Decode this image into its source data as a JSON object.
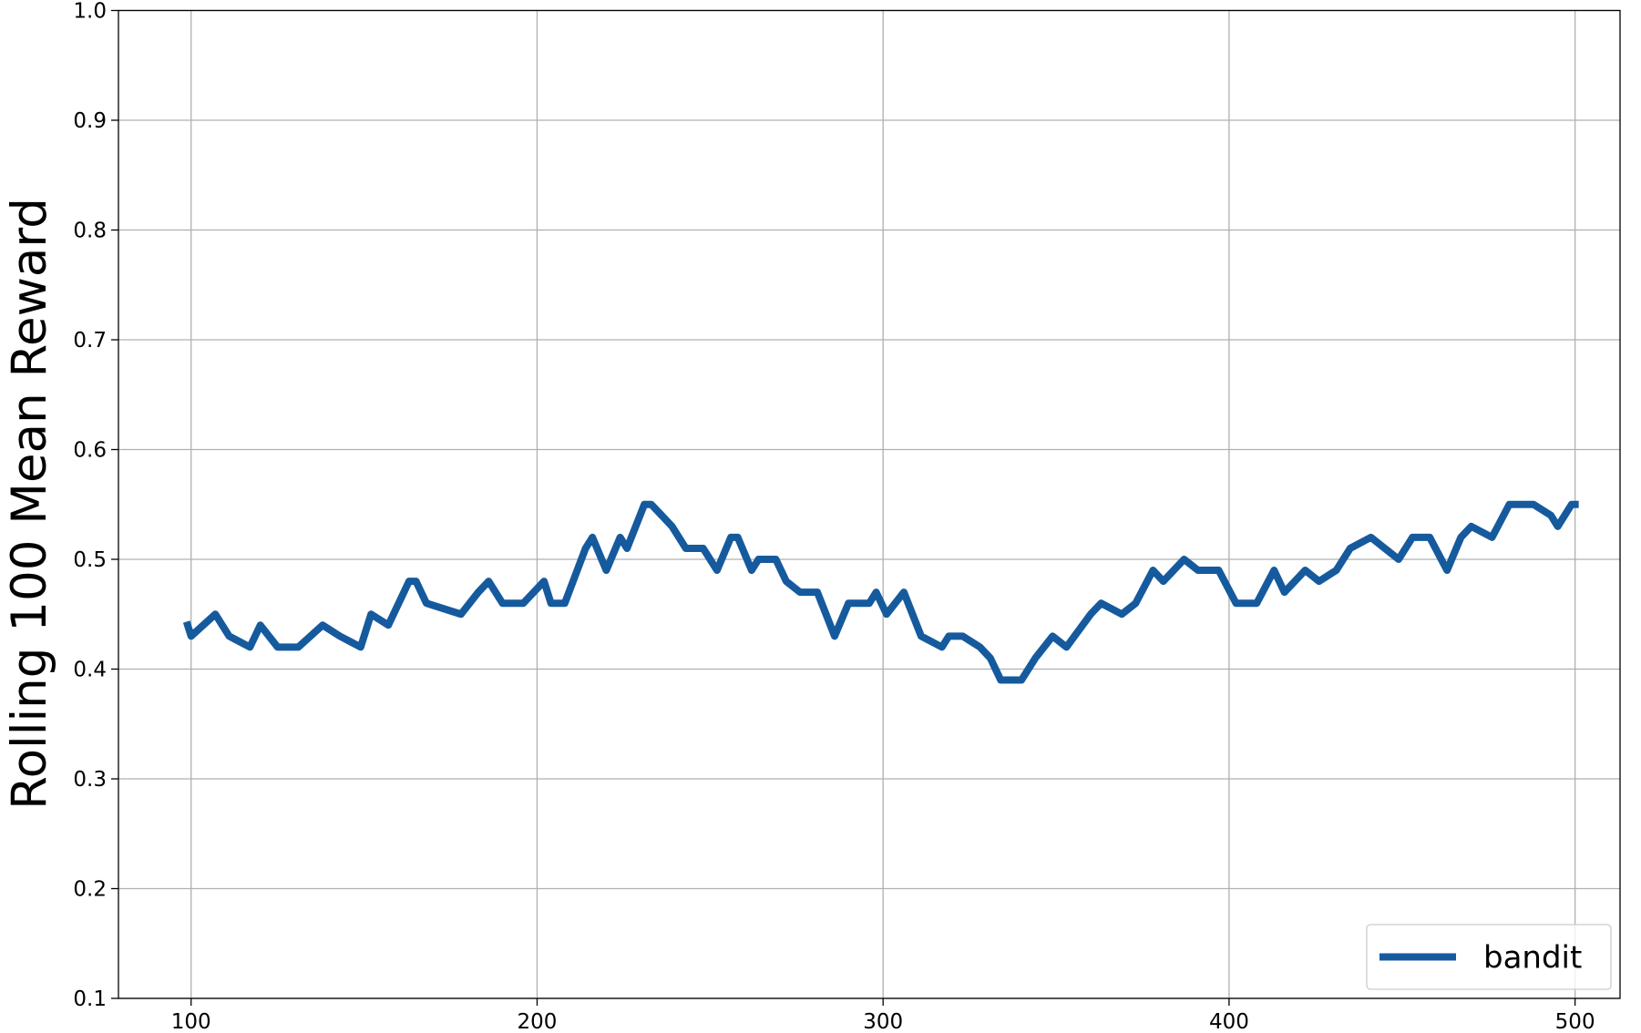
{
  "chart_data": {
    "type": "line",
    "y_label": "Rolling 100 Mean Reward",
    "x": [
      99,
      100,
      107,
      111,
      117,
      120,
      125,
      131,
      138,
      143,
      149,
      152,
      157,
      163,
      165,
      168,
      178,
      183,
      186,
      190,
      196,
      202,
      204,
      208,
      214,
      216,
      220,
      224,
      226,
      231,
      233,
      236,
      239,
      243,
      248,
      252,
      256,
      258,
      262,
      264,
      269,
      272,
      276,
      281,
      286,
      290,
      296,
      298,
      301,
      306,
      311,
      317,
      319,
      323,
      328,
      331,
      334,
      340,
      344,
      349,
      353,
      360,
      363,
      369,
      373,
      378,
      381,
      387,
      391,
      397,
      402,
      408,
      413,
      416,
      422,
      426,
      431,
      435,
      441,
      449,
      453,
      458,
      463,
      467,
      470,
      476,
      481,
      488,
      493,
      495,
      499,
      500
    ],
    "series": [
      {
        "name": "bandit",
        "color": "#165a9e",
        "values": [
          0.44,
          0.43,
          0.45,
          0.43,
          0.42,
          0.44,
          0.42,
          0.42,
          0.44,
          0.43,
          0.42,
          0.45,
          0.44,
          0.48,
          0.48,
          0.46,
          0.45,
          0.47,
          0.48,
          0.46,
          0.46,
          0.48,
          0.46,
          0.46,
          0.51,
          0.52,
          0.49,
          0.52,
          0.51,
          0.55,
          0.55,
          0.54,
          0.53,
          0.51,
          0.51,
          0.49,
          0.52,
          0.52,
          0.49,
          0.5,
          0.5,
          0.48,
          0.47,
          0.47,
          0.43,
          0.46,
          0.46,
          0.47,
          0.45,
          0.47,
          0.43,
          0.42,
          0.43,
          0.43,
          0.42,
          0.41,
          0.39,
          0.39,
          0.41,
          0.43,
          0.42,
          0.45,
          0.46,
          0.45,
          0.46,
          0.49,
          0.48,
          0.5,
          0.49,
          0.49,
          0.46,
          0.46,
          0.49,
          0.47,
          0.49,
          0.48,
          0.49,
          0.51,
          0.52,
          0.5,
          0.52,
          0.52,
          0.49,
          0.52,
          0.53,
          0.52,
          0.55,
          0.55,
          0.54,
          0.53,
          0.55,
          0.55
        ]
      }
    ],
    "xlim": [
      79,
      513
    ],
    "xticks": [
      100,
      200,
      300,
      400,
      500
    ],
    "ylim": [
      0.1,
      1.0
    ],
    "yticks": [
      0.1,
      0.2,
      0.3,
      0.4,
      0.5,
      0.6,
      0.7,
      0.8,
      0.9,
      {
        "value": 1.0,
        "label": "1.0"
      }
    ],
    "grid": true,
    "legend": "lower right"
  }
}
